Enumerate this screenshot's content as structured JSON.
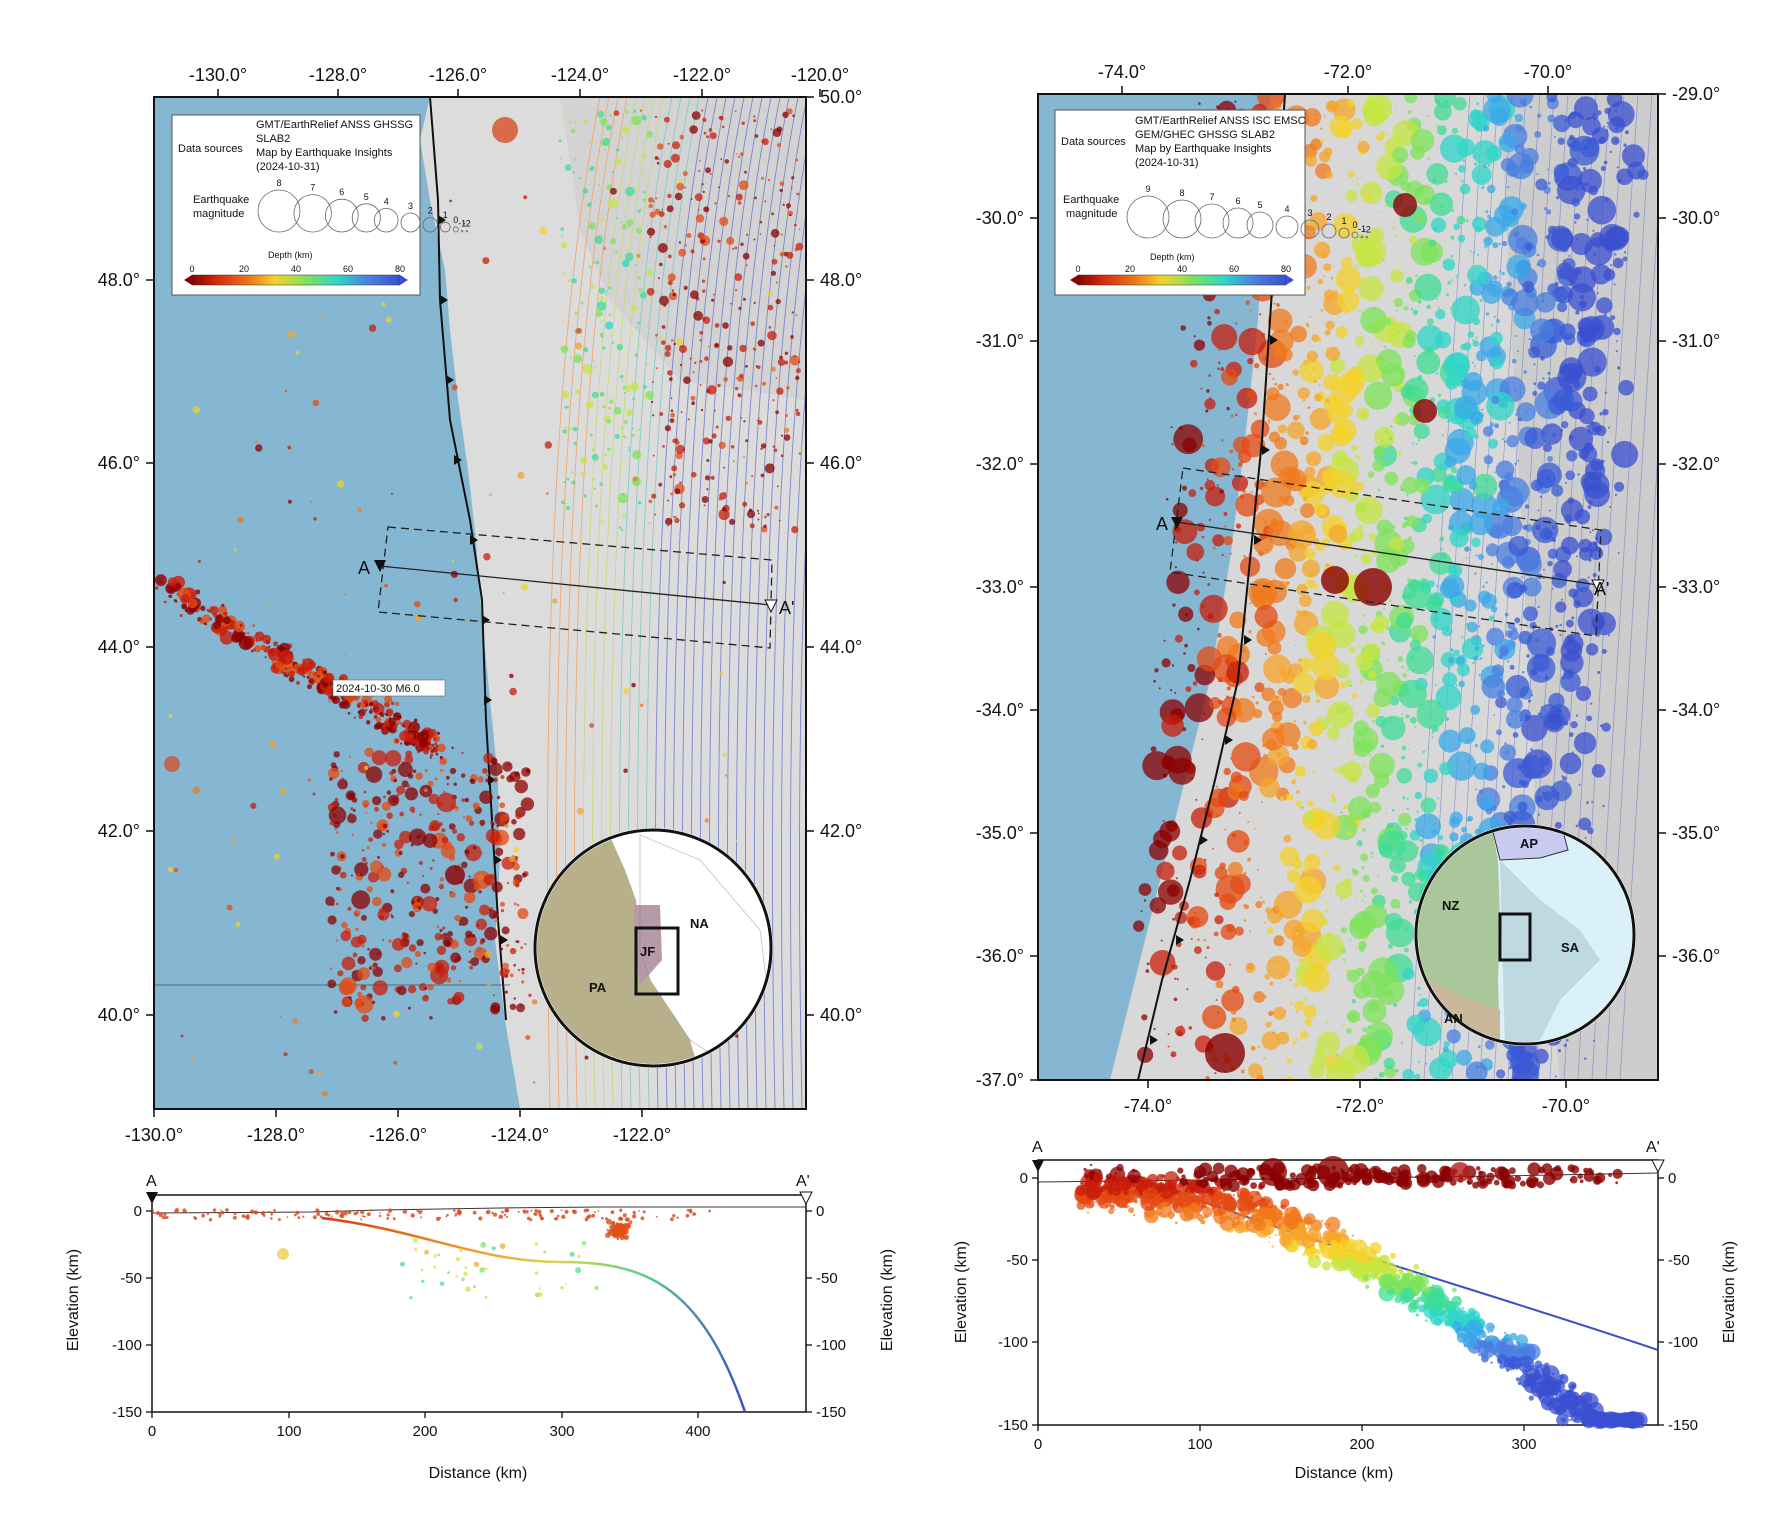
{
  "maps": [
    {
      "id": "cascadia",
      "lon_ticks_top": [
        "-130.0°",
        "-128.0°",
        "-126.0°",
        "-124.0°",
        "-122.0°",
        "-120.0°"
      ],
      "lon_ticks_bottom": [
        "-130.0°",
        "-128.0°",
        "-126.0°",
        "-124.0°",
        "-122.0°"
      ],
      "lat_ticks_left": [
        "48.0°",
        "46.0°",
        "44.0°",
        "42.0°",
        "40.0°"
      ],
      "lat_ticks_right": [
        "50.0°",
        "48.0°",
        "46.0°",
        "44.0°",
        "42.0°",
        "40.0°"
      ],
      "legend": {
        "sources_label": "Data sources",
        "sources_lines": [
          "GMT/EarthRelief ANSS GHSSG",
          "SLAB2",
          "Map by Earthquake Insights",
          "(2024-10-31)"
        ],
        "magnitude_label_1": "Earthquake",
        "magnitude_label_2": "magnitude",
        "magnitudes": [
          "8",
          "7",
          "6",
          "5",
          "4",
          "3",
          "2",
          "1",
          "0",
          "-1",
          "-2"
        ],
        "depth_label": "Depth (km)",
        "depth_ticks": [
          "0",
          "20",
          "40",
          "60",
          "80"
        ]
      },
      "annotation": "2024-10-30 M6.0",
      "profile_start": "A",
      "profile_end": "A'",
      "inset_plates": [
        "NA",
        "PA",
        "JF"
      ]
    },
    {
      "id": "chile",
      "lon_ticks_top": [
        "-74.0°",
        "-72.0°",
        "-70.0°"
      ],
      "lon_ticks_bottom": [
        "-74.0°",
        "-72.0°",
        "-70.0°"
      ],
      "lat_ticks_left": [
        "-30.0°",
        "-31.0°",
        "-32.0°",
        "-33.0°",
        "-34.0°",
        "-35.0°",
        "-36.0°",
        "-37.0°"
      ],
      "lat_ticks_right": [
        "-29.0°",
        "-30.0°",
        "-31.0°",
        "-32.0°",
        "-33.0°",
        "-34.0°",
        "-35.0°",
        "-36.0°"
      ],
      "legend": {
        "sources_label": "Data sources",
        "sources_lines": [
          "GMT/EarthRelief ANSS ISC EMSC",
          "GEM/GHEC GHSSG SLAB2",
          "Map by Earthquake Insights",
          "(2024-10-31)"
        ],
        "magnitude_label_1": "Earthquake",
        "magnitude_label_2": "magnitude",
        "magnitudes": [
          "9",
          "8",
          "7",
          "6",
          "5",
          "4",
          "3",
          "2",
          "1",
          "0",
          "-1",
          "-2"
        ],
        "depth_label": "Depth (km)",
        "depth_ticks": [
          "0",
          "20",
          "40",
          "60",
          "80"
        ]
      },
      "profile_start": "A",
      "profile_end": "A'",
      "inset_plates": [
        "AP",
        "NZ",
        "SA",
        "AN"
      ]
    }
  ],
  "profiles": [
    {
      "id": "cascadia-profile",
      "x_ticks": [
        "0",
        "100",
        "200",
        "300",
        "400"
      ],
      "y_ticks": [
        "0",
        "-50",
        "-100",
        "-150"
      ],
      "xlabel": "Distance (km)",
      "ylabel_left": "Elevation (km)",
      "ylabel_right": "Elevation (km)",
      "start": "A",
      "end": "A'"
    },
    {
      "id": "chile-profile",
      "x_ticks": [
        "0",
        "100",
        "200",
        "300"
      ],
      "y_ticks": [
        "0",
        "-50",
        "-100",
        "-150"
      ],
      "xlabel": "Distance (km)",
      "ylabel_left": "Elevation (km)",
      "ylabel_right": "Elevation (km)",
      "start": "A",
      "end": "A'"
    }
  ],
  "colors": {
    "ocean": "#7fb3d3",
    "land": "#d8d8d8",
    "plate_pa": "#b8b08a",
    "plate_nz": "#a9c79a",
    "plate_sa": "#d9f1f7"
  }
}
